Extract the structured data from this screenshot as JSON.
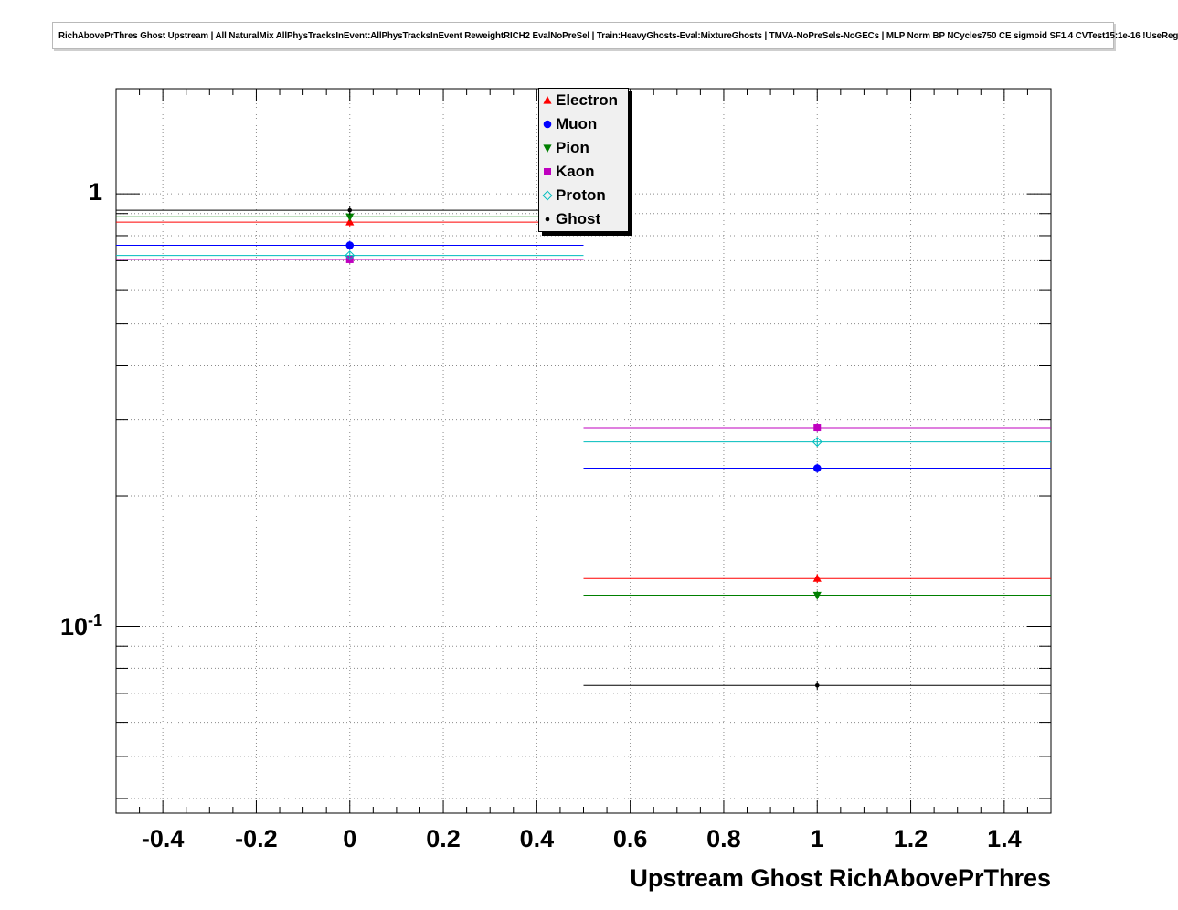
{
  "chart_data": {
    "type": "line",
    "title": "RichAbovePrThres Ghost Upstream | All NaturalMix AllPhysTracksInEvent:AllPhysTracksInEvent ReweightRICH2 EvalNoPreSel | Train:HeavyGhosts-Eval:MixtureGhosts | TMVA-NoPreSels-NoGECs | MLP Norm BP NCycles750 CE sigmoid SF1.4 CVTest15:1e-16 !UseReg",
    "xlabel": "Upstream Ghost RichAbovePrThres",
    "ylabel": "",
    "yscale": "log",
    "grid": true,
    "legend_position": "top-center",
    "xlim": [
      -0.5,
      1.5
    ],
    "ylim": [
      0.037,
      1.75
    ],
    "x_ticks": [
      -0.4,
      -0.2,
      0,
      0.2,
      0.4,
      0.6,
      0.8,
      1,
      1.2,
      1.4
    ],
    "x_tick_labels": [
      "-0.4",
      "-0.2",
      "0",
      "0.2",
      "0.4",
      "0.6",
      "0.8",
      "1",
      "1.2",
      "1.4"
    ],
    "y_ticks": [
      {
        "value": 1,
        "label": "1"
      },
      {
        "value": 0.1,
        "label": "10",
        "exp": "-1"
      }
    ],
    "bin_edges": [
      -0.5,
      0.5,
      1.5
    ],
    "bin_centers": [
      0,
      1
    ],
    "series": [
      {
        "name": "Electron",
        "color": "#ff0000",
        "marker": "triangle-up",
        "values": [
          0.86,
          0.129
        ]
      },
      {
        "name": "Muon",
        "color": "#0000ff",
        "marker": "circle",
        "values": [
          0.76,
          0.232
        ]
      },
      {
        "name": "Pion",
        "color": "#008000",
        "marker": "triangle-down",
        "values": [
          0.885,
          0.118
        ]
      },
      {
        "name": "Kaon",
        "color": "#bf00bf",
        "marker": "square",
        "values": [
          0.705,
          0.288
        ]
      },
      {
        "name": "Proton",
        "color": "#00bdbd",
        "marker": "diamond",
        "values": [
          0.72,
          0.267
        ]
      },
      {
        "name": "Ghost",
        "color": "#000000",
        "marker": "dot",
        "values": [
          0.916,
          0.073
        ]
      }
    ]
  }
}
